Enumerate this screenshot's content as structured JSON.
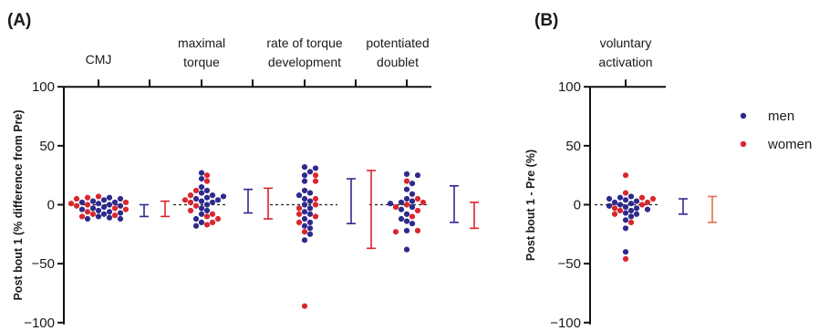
{
  "colors": {
    "men": "#2e2a8c",
    "women": "#d9272e",
    "women_bar_b": "#e2704a",
    "axis": "#111111"
  },
  "chart_data": [
    {
      "panel": "(A)",
      "type": "scatter",
      "ylabel": "Post bout 1 (% difference from Pre)",
      "ylim": [
        -100,
        100
      ],
      "yticks": [
        100,
        50,
        0,
        -50,
        -100
      ],
      "categories": [
        "CMJ",
        "maximal torque",
        "rate of torque development",
        "potentiated doublet"
      ],
      "category_label_lines": [
        [
          "CMJ"
        ],
        [
          "maximal",
          "torque"
        ],
        [
          "rate of torque",
          "development"
        ],
        [
          "potentiated",
          "doublet"
        ]
      ],
      "series": [
        {
          "name": "men",
          "points": [
            {
              "category": "CMJ",
              "values": [
                6,
                4,
                3,
                2,
                0,
                -1,
                -2,
                -3,
                -4,
                -5,
                -6,
                -8,
                -10,
                -12,
                -12,
                -11,
                5,
                2,
                -7,
                1
              ]
            },
            {
              "category": "maximal torque",
              "values": [
                27,
                22,
                15,
                12,
                10,
                8,
                6,
                5,
                4,
                2,
                0,
                -3,
                -5,
                -8,
                -12,
                -15,
                -18,
                7,
                3
              ]
            },
            {
              "category": "rate of torque development",
              "values": [
                32,
                31,
                28,
                25,
                20,
                12,
                10,
                8,
                5,
                0,
                -3,
                -8,
                -12,
                -15,
                -18,
                -20,
                -25,
                -30,
                3,
                -6
              ]
            },
            {
              "category": "potentiated doublet",
              "values": [
                26,
                25,
                18,
                13,
                9,
                5,
                3,
                1,
                -2,
                -4,
                -8,
                -12,
                -14,
                -16,
                -22,
                -38,
                2
              ]
            }
          ]
        },
        {
          "name": "women",
          "points": [
            {
              "category": "CMJ",
              "values": [
                7,
                5,
                2,
                0,
                -1,
                -3,
                -4,
                -6,
                -8,
                -10,
                6,
                1,
                -9
              ]
            },
            {
              "category": "maximal torque",
              "values": [
                25,
                20,
                12,
                8,
                2,
                -1,
                -5,
                -8,
                -10,
                -15,
                -17,
                4,
                -12
              ]
            },
            {
              "category": "rate of torque development",
              "values": [
                25,
                20,
                5,
                0,
                -3,
                -8,
                -10,
                -15,
                -23,
                -86
              ]
            },
            {
              "category": "potentiated doublet",
              "values": [
                20,
                5,
                0,
                -2,
                -5,
                -10,
                -22,
                -23,
                2
              ]
            }
          ]
        }
      ],
      "error_bars": [
        {
          "category": "CMJ",
          "men": {
            "low": -10,
            "high": 0
          },
          "women": {
            "low": -10,
            "high": 3
          }
        },
        {
          "category": "maximal torque",
          "men": {
            "low": -7,
            "high": 13
          },
          "women": {
            "low": -12,
            "high": 14
          }
        },
        {
          "category": "rate of torque development",
          "men": {
            "low": -16,
            "high": 22
          },
          "women": {
            "low": -37,
            "high": 29
          }
        },
        {
          "category": "potentiated doublet",
          "men": {
            "low": -15,
            "high": 16
          },
          "women": {
            "low": -20,
            "high": 2
          }
        }
      ]
    },
    {
      "panel": "(B)",
      "type": "scatter",
      "ylabel": "Post bout 1 - Pre (%)",
      "ylim": [
        -100,
        100
      ],
      "yticks": [
        100,
        50,
        0,
        -50,
        -100
      ],
      "categories": [
        "voluntary activation"
      ],
      "category_label_lines": [
        [
          "voluntary",
          "activation"
        ]
      ],
      "series": [
        {
          "name": "men",
          "points": [
            {
              "category": "voluntary activation",
              "values": [
                7,
                5,
                4,
                3,
                2,
                1,
                0,
                -1,
                -2,
                -3,
                -4,
                -5,
                -7,
                -8,
                -10,
                -13,
                -20,
                -40,
                6
              ]
            }
          ]
        },
        {
          "name": "women",
          "points": [
            {
              "category": "voluntary activation",
              "values": [
                25,
                10,
                5,
                2,
                0,
                -3,
                -5,
                -8,
                -15,
                -46,
                6
              ]
            }
          ]
        }
      ],
      "error_bars": [
        {
          "category": "voluntary activation",
          "men": {
            "low": -8,
            "high": 5
          },
          "women": {
            "low": -15,
            "high": 7
          }
        }
      ],
      "legend": {
        "position": "right",
        "entries": [
          "men",
          "women"
        ]
      }
    }
  ]
}
